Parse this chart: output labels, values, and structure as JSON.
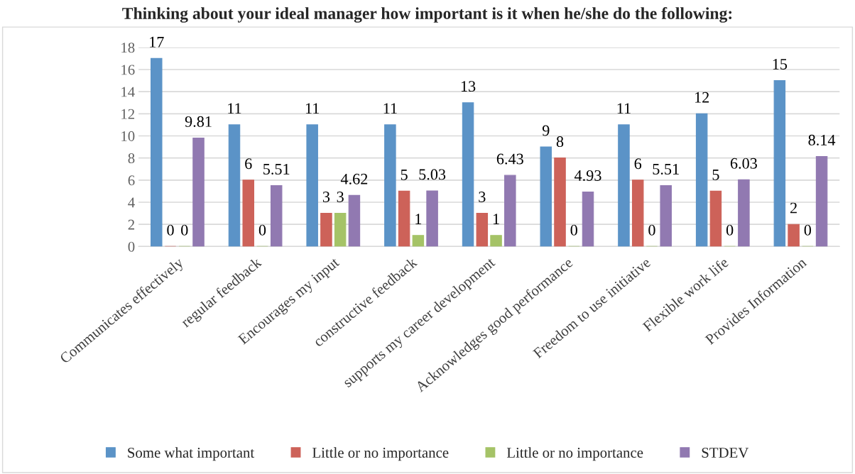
{
  "chart_data": {
    "type": "bar",
    "title": "Thinking about your ideal manager how important is it when he/she do the following:",
    "categories": [
      "Communicates effectively",
      "regular feedback",
      "Encourages my input",
      "constructive feedback",
      "supports my career development",
      "Acknowledges good performance",
      "Freedom to use initiative",
      "Flexible work life",
      "Provides Information"
    ],
    "series": [
      {
        "name": "Some what important",
        "color": "#5b93c7",
        "values": [
          17,
          11,
          11,
          11,
          13,
          9,
          11,
          12,
          15
        ]
      },
      {
        "name": "Little or no importance",
        "color": "#cd6259",
        "values": [
          0,
          6,
          3,
          5,
          3,
          8,
          6,
          5,
          2
        ]
      },
      {
        "name": "Little or no importance",
        "color": "#a5c367",
        "values": [
          0,
          0,
          3,
          1,
          1,
          0,
          0,
          0,
          0
        ]
      },
      {
        "name": "STDEV",
        "color": "#9179b1",
        "values": [
          9.81,
          5.51,
          4.62,
          5.03,
          6.43,
          4.93,
          5.51,
          6.03,
          8.14
        ]
      }
    ],
    "ylim": [
      0,
      18
    ],
    "yticks": [
      0,
      2,
      4,
      6,
      8,
      10,
      12,
      14,
      16,
      18
    ],
    "grid": "y",
    "legend": "bottom",
    "data_labels": true
  }
}
